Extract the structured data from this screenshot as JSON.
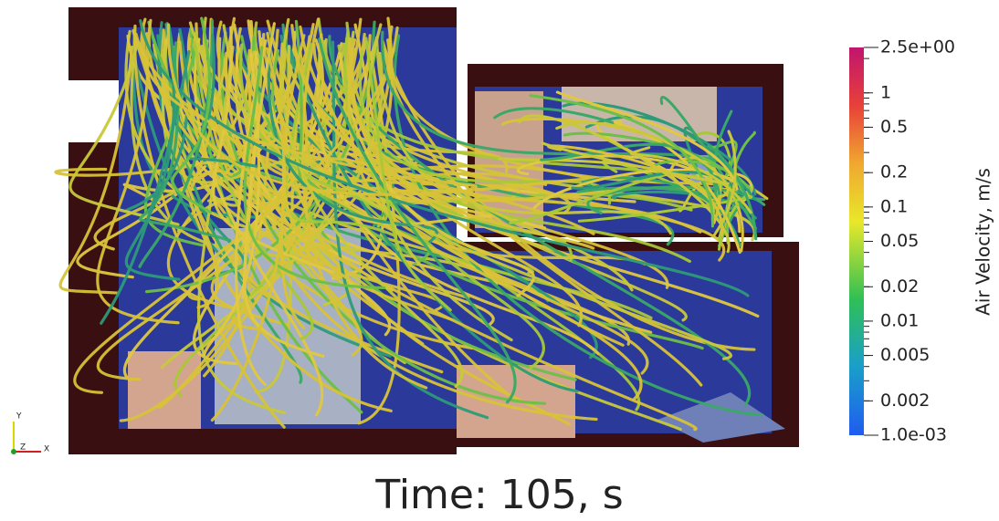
{
  "colorbar": {
    "title": "Air Velocity, m/s",
    "log_scale": true,
    "range": [
      {
        "value": 0.001,
        "label": "1.0e-03"
      },
      {
        "value": 2.5,
        "label": "2.5e+00"
      }
    ],
    "ticks": [
      1,
      0.5,
      0.2,
      0.1,
      0.05,
      0.02,
      0.01,
      0.005,
      0.002
    ]
  },
  "time_label": "Time:  105, s",
  "axes_triad": {
    "y": "Y",
    "z": "Z",
    "x": "X"
  }
}
